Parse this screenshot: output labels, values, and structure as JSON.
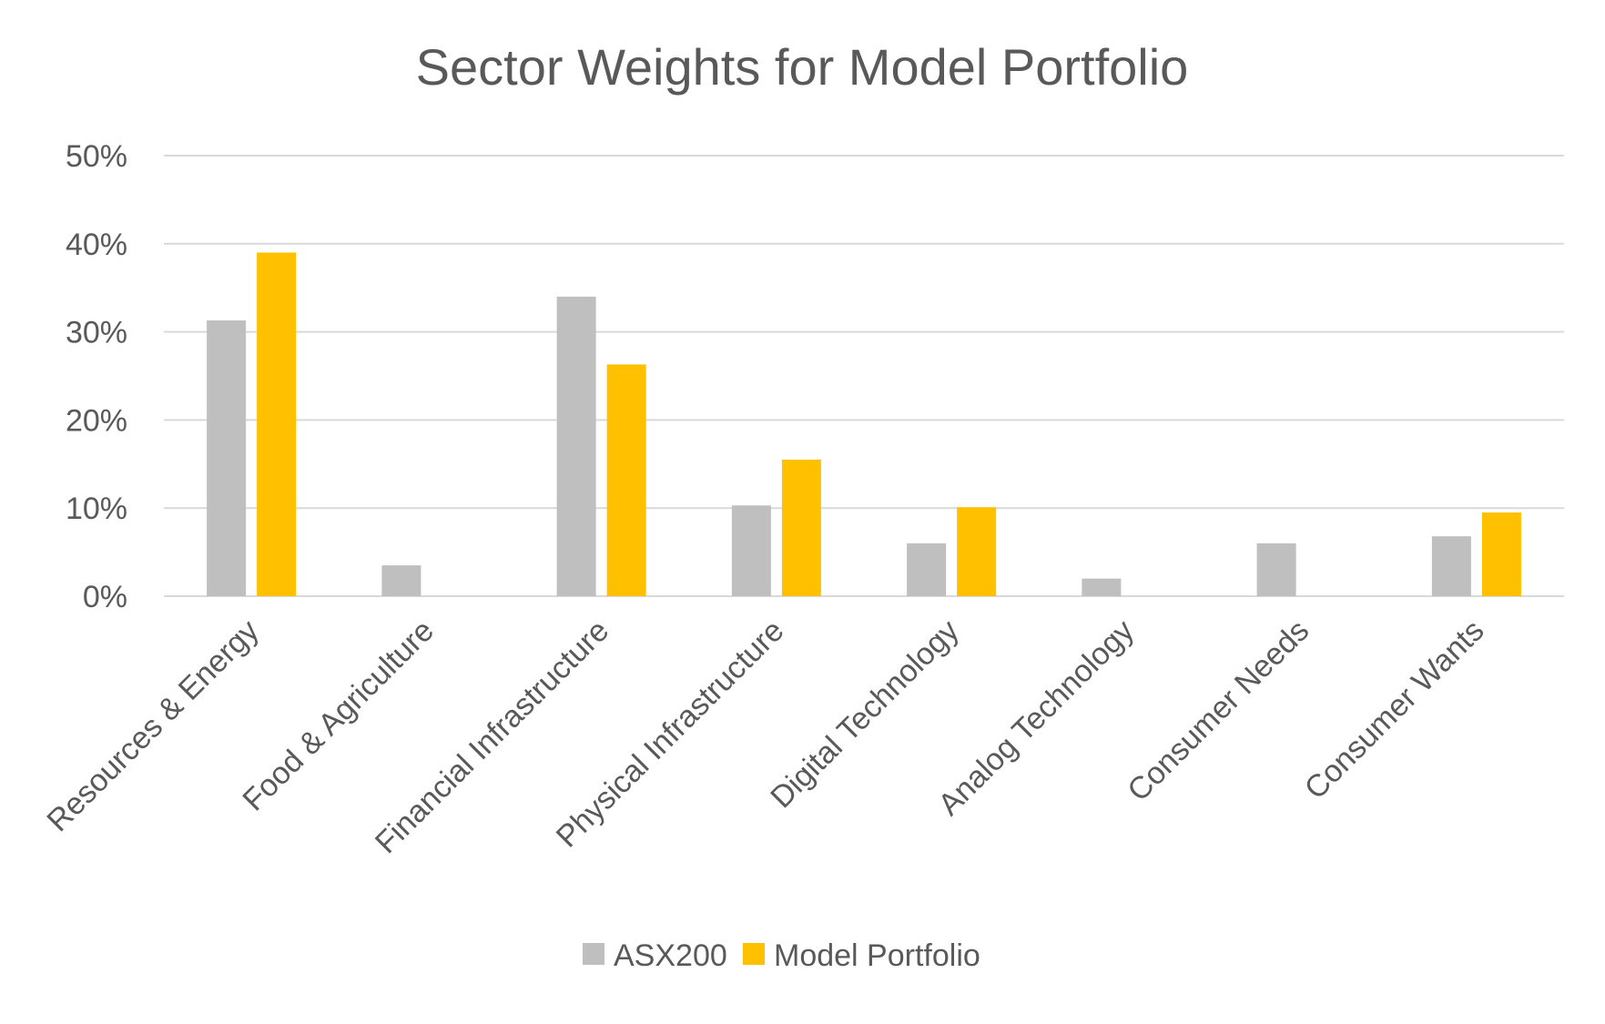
{
  "chart_data": {
    "type": "bar",
    "title": "Sector Weights for Model Portfolio",
    "xlabel": "",
    "ylabel": "",
    "ylim": [
      0,
      50
    ],
    "yticks": [
      "0%",
      "10%",
      "20%",
      "30%",
      "40%",
      "50%"
    ],
    "ytick_values": [
      0,
      10,
      20,
      30,
      40,
      50
    ],
    "grid": true,
    "legend_position": "bottom",
    "categories": [
      "Resources & Energy",
      "Food & Agriculture",
      "Financial Infrastructure",
      "Physical Infrastructure",
      "Digital Technology",
      "Analog Technology",
      "Consumer Needs",
      "Consumer Wants"
    ],
    "series": [
      {
        "name": "ASX200",
        "color": "#bfbfbf",
        "values": [
          31.3,
          3.5,
          34.0,
          10.3,
          6.0,
          2.0,
          6.0,
          6.8
        ]
      },
      {
        "name": "Model Portfolio",
        "color": "#ffc000",
        "values": [
          39.0,
          0,
          26.3,
          15.5,
          10.1,
          0,
          0,
          9.5
        ]
      }
    ]
  }
}
